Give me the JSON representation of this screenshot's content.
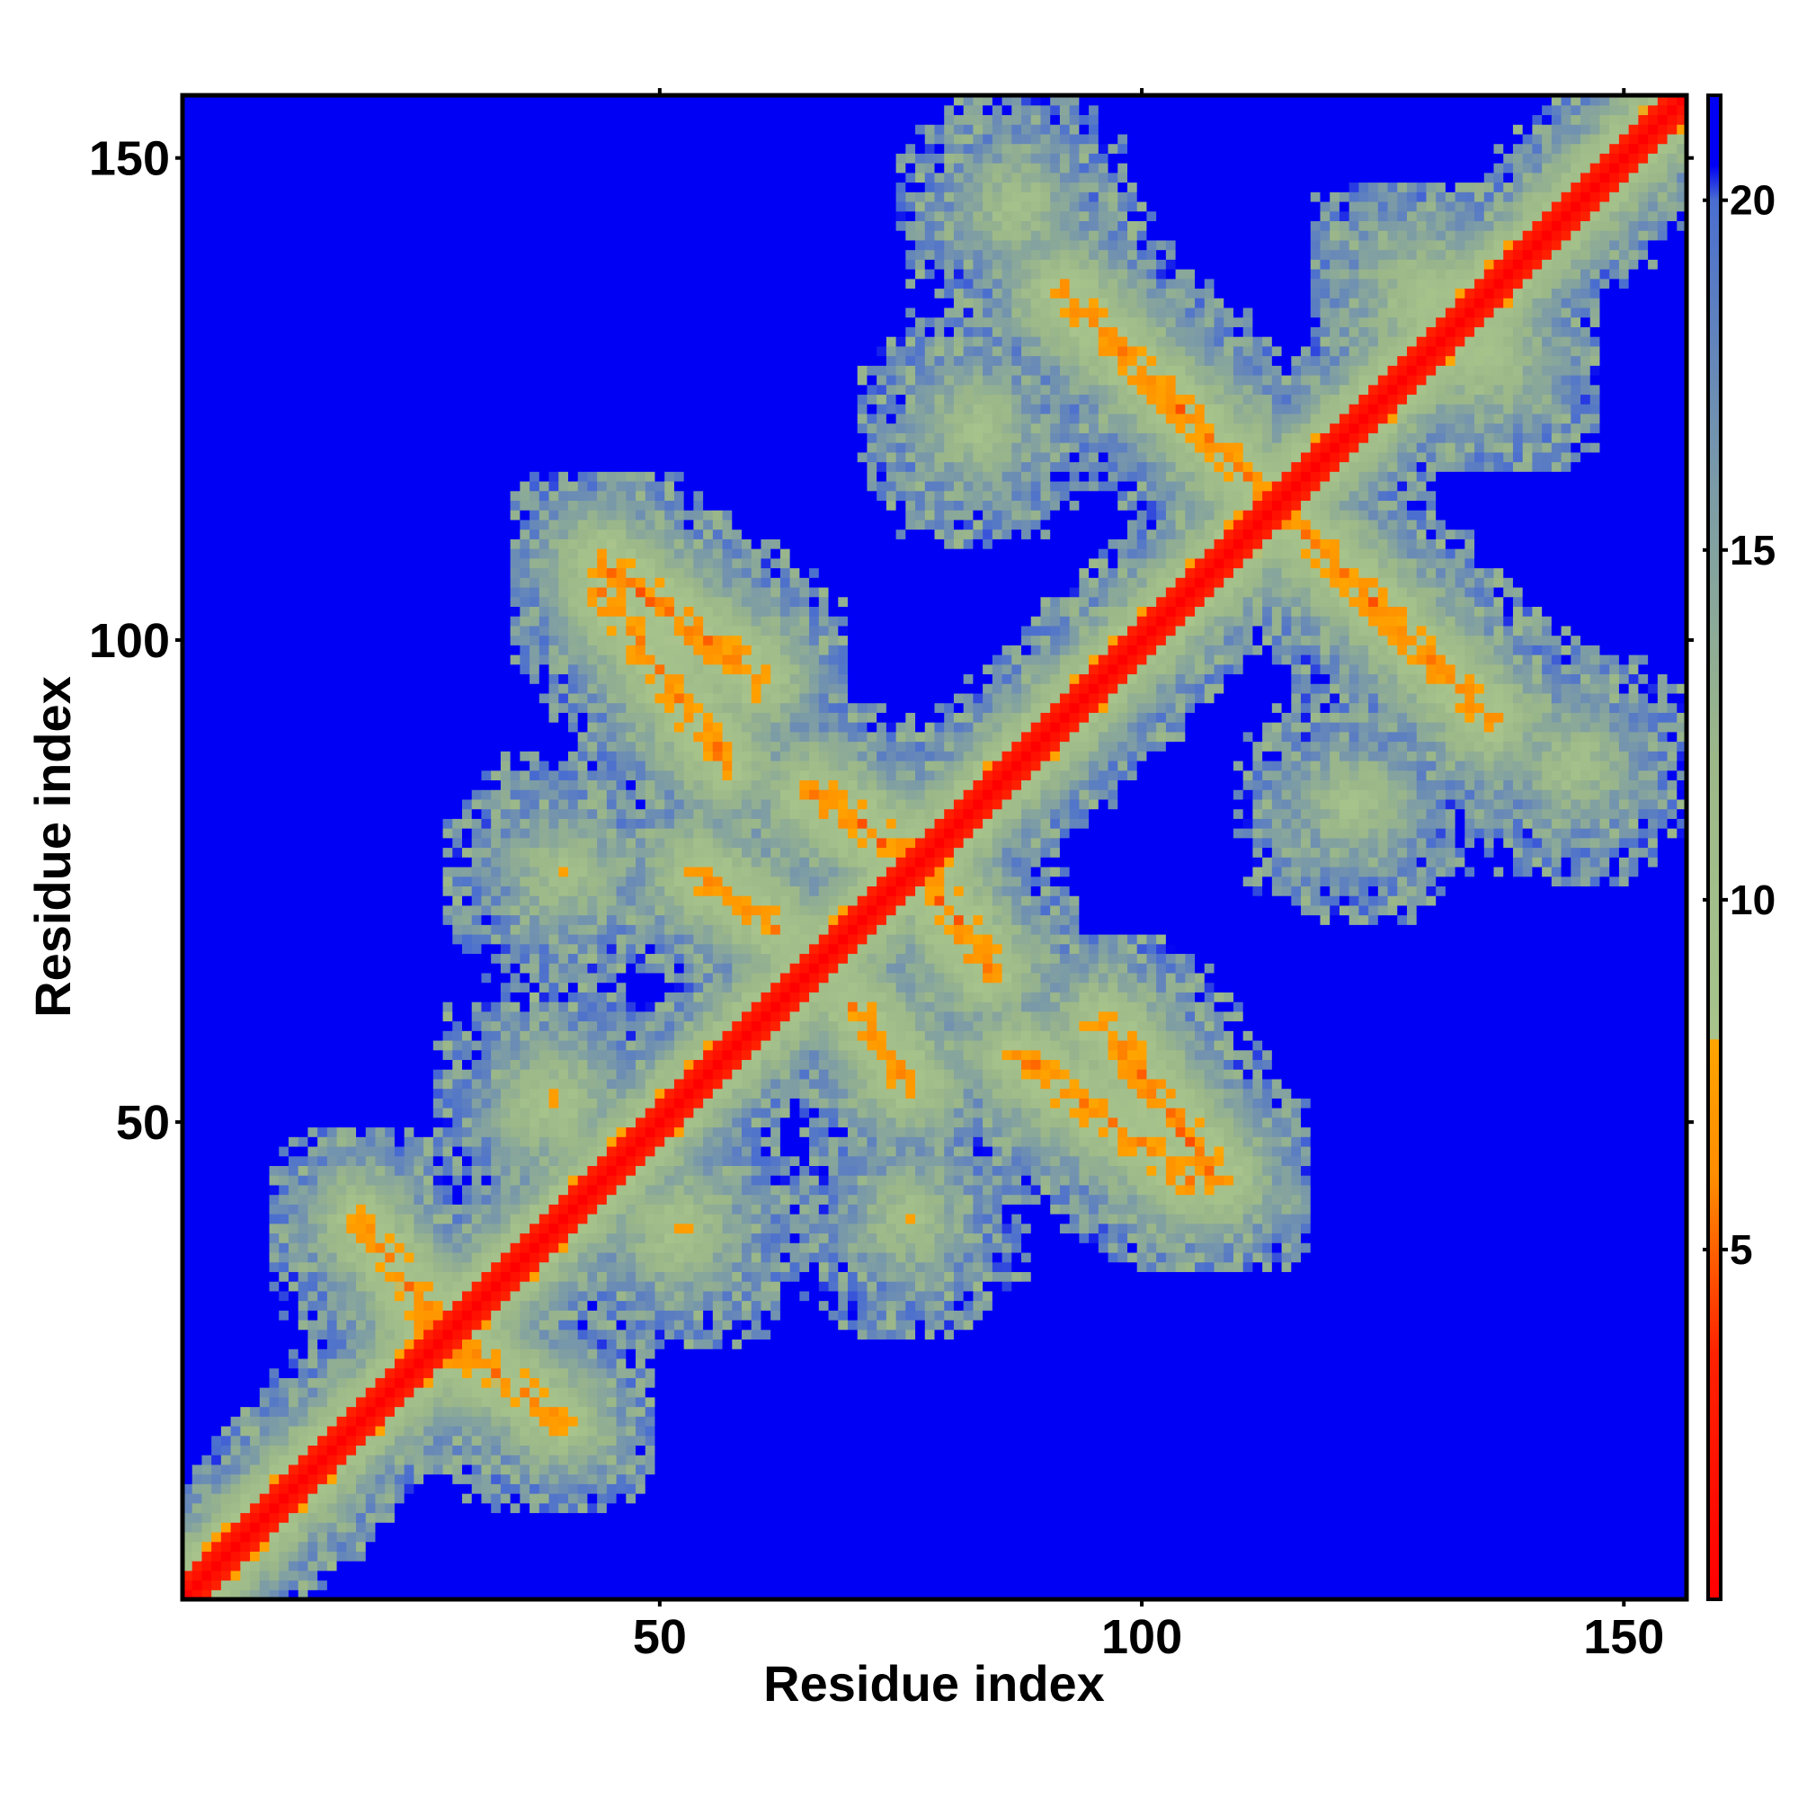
{
  "chart_data": {
    "type": "heatmap",
    "title": "",
    "xlabel": "Residue index",
    "ylabel": "Residue index",
    "n_residues": 156,
    "xlim": [
      1,
      156
    ],
    "ylim": [
      1,
      156
    ],
    "x_ticks": [
      50,
      100,
      150
    ],
    "y_ticks": [
      50,
      100,
      150
    ],
    "colorbar": {
      "range": [
        0,
        21.5
      ],
      "ticks": [
        5,
        10,
        15,
        20
      ],
      "color_stops": [
        {
          "value": 0,
          "color": "#ff0000"
        },
        {
          "value": 3.5,
          "color": "#ff2200"
        },
        {
          "value": 6,
          "color": "#ff8c00"
        },
        {
          "value": 8,
          "color": "#ffa500"
        },
        {
          "value": 8.01,
          "color": "#a8c48c"
        },
        {
          "value": 12,
          "color": "#9cb889"
        },
        {
          "value": 16,
          "color": "#7a9aa8"
        },
        {
          "value": 20,
          "color": "#4a6ed0"
        },
        {
          "value": 20.5,
          "color": "#0000f5"
        }
      ]
    },
    "diagonal_band": {
      "half_width_residues": 2,
      "value_on_diagonal": 0,
      "value_at_edge": 6
    },
    "contact_features": [
      {
        "type": "antiparallel",
        "i_range": [
          114,
          136
        ],
        "j_range": [
          114,
          92
        ],
        "min_value": 4.5
      },
      {
        "type": "antiparallel",
        "i_range": [
          44,
          60
        ],
        "j_range": [
          108,
          96
        ],
        "min_value": 4.5
      },
      {
        "type": "antiparallel",
        "i_range": [
          66,
          78
        ],
        "j_range": [
          84,
          76
        ],
        "min_value": 4.5
      },
      {
        "type": "antiparallel",
        "i_range": [
          54,
          62
        ],
        "j_range": [
          76,
          70
        ],
        "min_value": 5
      },
      {
        "type": "antiparallel",
        "i_range": [
          87,
          105
        ],
        "j_range": [
          57,
          44
        ],
        "min_value": 5
      },
      {
        "type": "antiparallel",
        "i_range": [
          19,
          30
        ],
        "j_range": [
          40,
          25
        ],
        "min_value": 5
      },
      {
        "type": "blob",
        "center": [
          39,
          52
        ],
        "radius": 5,
        "min_value": 6
      },
      {
        "type": "blob",
        "center": [
          130,
          135
        ],
        "radius": 6,
        "min_value": 6
      },
      {
        "type": "blob",
        "center": [
          76,
          40
        ],
        "radius": 5,
        "min_value": 7
      },
      {
        "type": "blob",
        "center": [
          122,
          83
        ],
        "radius": 5,
        "min_value": 7
      },
      {
        "type": "blob",
        "center": [
          87,
          145
        ],
        "radius": 5,
        "min_value": 7
      }
    ]
  }
}
